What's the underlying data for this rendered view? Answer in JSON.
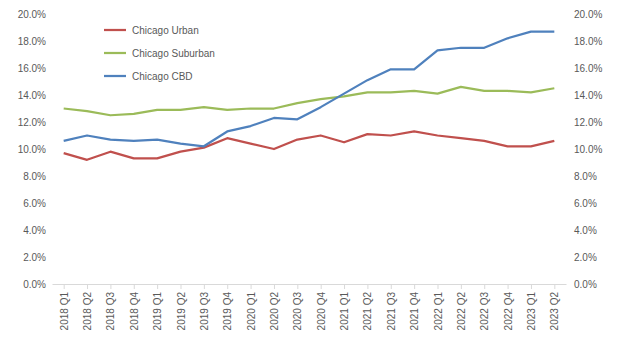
{
  "chart_data": {
    "type": "line",
    "categories": [
      "2018 Q1",
      "2018 Q2",
      "2018 Q3",
      "2018 Q4",
      "2019 Q1",
      "2019 Q2",
      "2019 Q3",
      "2019 Q4",
      "2020 Q1",
      "2020 Q2",
      "2020 Q3",
      "2020 Q4",
      "2021 Q1",
      "2021 Q2",
      "2021 Q3",
      "2021 Q4",
      "2022 Q1",
      "2022 Q2",
      "2022 Q3",
      "2022 Q4",
      "2023 Q1",
      "2023 Q2"
    ],
    "series": [
      {
        "name": "Chicago Urban",
        "color": "#c0504d",
        "values": [
          9.7,
          9.2,
          9.8,
          9.3,
          9.3,
          9.8,
          10.1,
          10.8,
          10.4,
          10.0,
          10.7,
          11.0,
          10.5,
          11.1,
          11.0,
          11.3,
          11.0,
          10.8,
          10.6,
          10.2,
          10.2,
          10.6
        ]
      },
      {
        "name": "Chicago Suburban",
        "color": "#9bbb59",
        "values": [
          13.0,
          12.8,
          12.5,
          12.6,
          12.9,
          12.9,
          13.1,
          12.9,
          13.0,
          13.0,
          13.4,
          13.7,
          13.9,
          14.2,
          14.2,
          14.3,
          14.1,
          14.6,
          14.3,
          14.3,
          14.2,
          14.5
        ]
      },
      {
        "name": "Chicago CBD",
        "color": "#4f81bd",
        "values": [
          10.6,
          11.0,
          10.7,
          10.6,
          10.7,
          10.4,
          10.2,
          11.3,
          11.7,
          12.3,
          12.2,
          13.1,
          14.1,
          15.1,
          15.9,
          15.9,
          17.3,
          17.5,
          17.5,
          18.2,
          18.7,
          18.7
        ]
      }
    ],
    "ylim": [
      0,
      20
    ],
    "yticks": [
      {
        "value": 0,
        "label": "0.0%"
      },
      {
        "value": 2,
        "label": "2.0%"
      },
      {
        "value": 4,
        "label": "4.0%"
      },
      {
        "value": 6,
        "label": "6.0%"
      },
      {
        "value": 8,
        "label": "8.0%"
      },
      {
        "value": 10,
        "label": "10.0%"
      },
      {
        "value": 12,
        "label": "12.0%"
      },
      {
        "value": 14,
        "label": "14.0%"
      },
      {
        "value": 16,
        "label": "16.0%"
      },
      {
        "value": 18,
        "label": "18.0%"
      },
      {
        "value": 20,
        "label": "20.0%"
      }
    ],
    "y2lim": [
      0,
      20
    ],
    "y2ticks": [
      {
        "value": 0,
        "label": "0.0%"
      },
      {
        "value": 2,
        "label": "2.0%"
      },
      {
        "value": 4,
        "label": "4.0%"
      },
      {
        "value": 6,
        "label": "6.0%"
      },
      {
        "value": 8,
        "label": "8.0%"
      },
      {
        "value": 10,
        "label": "10.0%"
      },
      {
        "value": 12,
        "label": "12.0%"
      },
      {
        "value": 14,
        "label": "14.0%"
      },
      {
        "value": 16,
        "label": "16.0%"
      },
      {
        "value": 18,
        "label": "18.0%"
      },
      {
        "value": 20,
        "label": "20.0%"
      }
    ],
    "grid": false,
    "legend": "upper left"
  }
}
